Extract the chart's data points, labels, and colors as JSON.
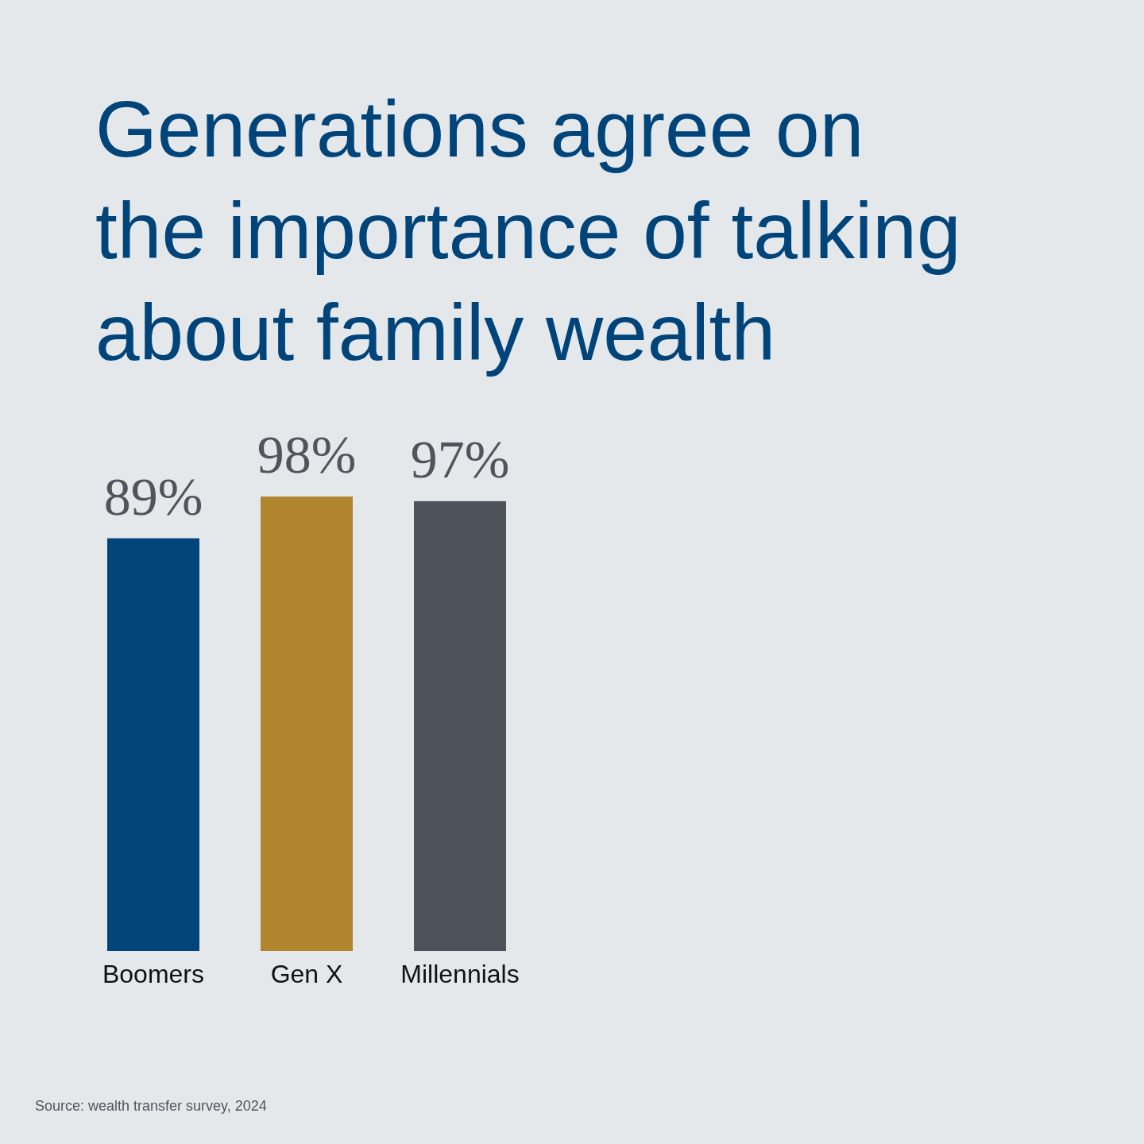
{
  "chart_data": {
    "type": "bar",
    "title": "Generations agree on the importance of talking about family wealth",
    "categories": [
      "Boomers",
      "Gen X",
      "Millennials"
    ],
    "values": [
      89,
      98,
      97
    ],
    "colors": [
      "#00447a",
      "#b1842e",
      "#4e525b"
    ],
    "value_labels": [
      "89%",
      "98%",
      "97%"
    ],
    "tick_labels": "x",
    "annotations": [
      "Source: wealth transfer survey, 2024"
    ]
  }
}
